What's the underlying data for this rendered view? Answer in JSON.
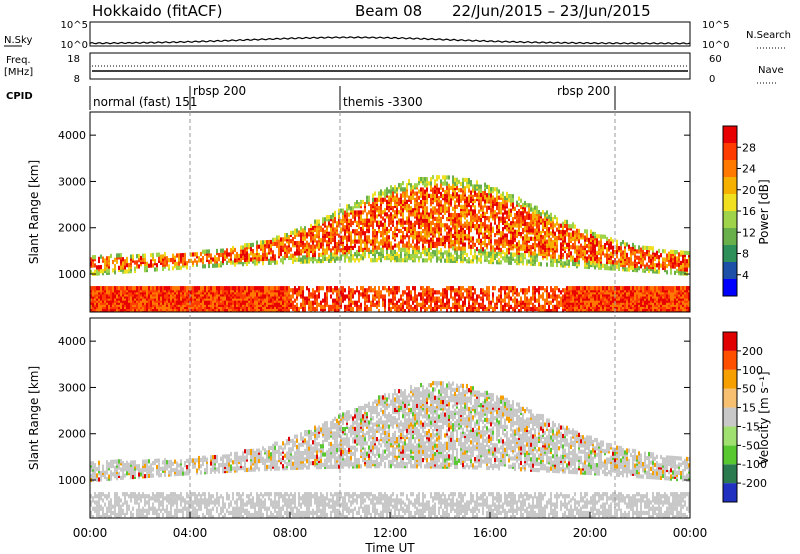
{
  "header": {
    "station": "Hokkaido (fitACF)",
    "beam": "Beam 08",
    "date_range": "22/Jun/2015 – 23/Jun/2015"
  },
  "top_panel": {
    "left_label": "N.Sky",
    "left_ticks": [
      "10^5",
      "10^0"
    ],
    "right_label": "N.Search",
    "right_ticks": [
      "10^5",
      "10^0"
    ]
  },
  "freq_panel": {
    "left_label": "Freq.",
    "left_unit": "[MHz]",
    "left_ticks": [
      "18",
      "8"
    ],
    "right_label": "Nave",
    "right_ticks": [
      "60",
      "0"
    ]
  },
  "cpid": {
    "label": "CPID",
    "segments": [
      {
        "text": "normal (fast) 151",
        "start": 0
      },
      {
        "text": "rbsp  200",
        "start": 4
      },
      {
        "text": "themis -3300",
        "start": 10
      },
      {
        "text": "rbsp  200",
        "start": 21
      }
    ]
  },
  "power_panel": {
    "ylabel": "Slant Range [km]",
    "yticks": [
      "4000",
      "3000",
      "2000",
      "1000"
    ],
    "colorbar_label": "Power [dB]",
    "colorbar_ticks": [
      "28",
      "24",
      "20",
      "16",
      "12",
      "8",
      "4"
    ],
    "colors": [
      "#0000ff",
      "#1c4fa8",
      "#2d8f5a",
      "#6ab04a",
      "#9fd34a",
      "#f0e020",
      "#f5b000",
      "#ff7800",
      "#ff3c00",
      "#e80000"
    ]
  },
  "velocity_panel": {
    "ylabel": "Slant Range [km]",
    "yticks": [
      "4000",
      "3000",
      "2000",
      "1000"
    ],
    "colorbar_label": "Velocity [m s⁻¹]",
    "colorbar_ticks": [
      "200",
      "100",
      "50",
      "15",
      "-15",
      "-50",
      "-100",
      "-200"
    ],
    "colors": [
      "#2030c0",
      "#2a7a50",
      "#58c830",
      "#a0e070",
      "#c8c8c8",
      "#f7c070",
      "#f5a000",
      "#ff5000",
      "#e00000"
    ]
  },
  "xaxis": {
    "label": "Time UT",
    "ticks": [
      "00:00",
      "04:00",
      "08:00",
      "12:00",
      "16:00",
      "20:00",
      "00:00"
    ]
  }
}
